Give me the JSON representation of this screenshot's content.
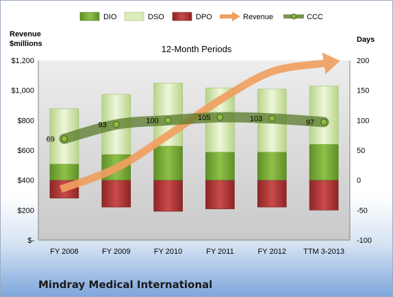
{
  "chart_data": {
    "type": "bar",
    "subtitle": "12-Month Periods",
    "company": "Mindray Medical International",
    "categories": [
      "FY 2008",
      "FY 2009",
      "FY 2010",
      "FY 2011",
      "FY 2012",
      "TTM 3-2013"
    ],
    "y_left": {
      "label": "Revenue\n$millions",
      "range": [
        0,
        1200
      ],
      "ticks": [
        0,
        200,
        400,
        600,
        800,
        1000,
        1200
      ],
      "tick_labels": [
        "$-",
        "$200",
        "$400",
        "$600",
        "$800",
        "$1,000",
        "$1,200"
      ]
    },
    "y_right": {
      "label": "Days",
      "range": [
        -100,
        200
      ],
      "ticks": [
        -100,
        -50,
        0,
        50,
        100,
        150,
        200
      ],
      "tick_labels": [
        "-100",
        "-50",
        "0",
        "50",
        "100",
        "150",
        "200"
      ]
    },
    "series": [
      {
        "name": "DIO",
        "axis": "right",
        "values": [
          27,
          43,
          57,
          47,
          47,
          60
        ],
        "color": "#7fae3a"
      },
      {
        "name": "DSO",
        "axis": "right",
        "values": [
          92,
          100,
          105,
          107,
          105,
          97
        ],
        "color": "#dcebb8"
      },
      {
        "name": "DPO",
        "axis": "right",
        "values": [
          -30,
          -45,
          -52,
          -48,
          -45,
          -50
        ],
        "color": "#b93a3a"
      },
      {
        "name": "Revenue",
        "axis": "left",
        "values": [
          340,
          480,
          700,
          935,
          1125,
          1180
        ],
        "color": "#f0a060"
      },
      {
        "name": "CCC",
        "axis": "right",
        "values": [
          69,
          93,
          100,
          105,
          103,
          97
        ],
        "color": "#6a8a3a"
      }
    ],
    "ccc_labels": [
      "69",
      "93",
      "100",
      "105",
      "103",
      "97"
    ],
    "legend": "top",
    "grid": false
  }
}
